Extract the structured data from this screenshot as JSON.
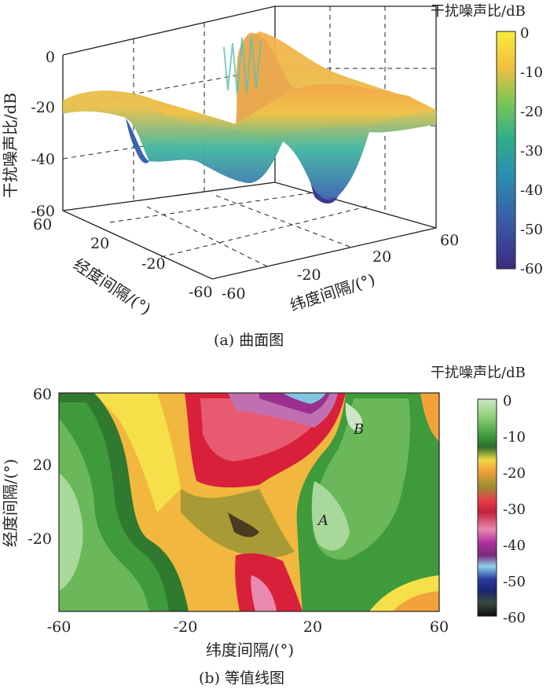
{
  "chart_data": [
    {
      "type": "surface",
      "caption": "(a) 曲面图",
      "zlabel": "干扰噪声比/dB",
      "xlabel": "纬度间隔/(°)",
      "ylabel": "经度间隔/(°)",
      "x_ticks": [
        "-60",
        "-20",
        "20",
        "60"
      ],
      "y_ticks": [
        "-60",
        "-20",
        "20",
        "60"
      ],
      "z_ticks": [
        "0",
        "-20",
        "-40",
        "-60"
      ],
      "zlim": [
        -60,
        0
      ],
      "colorbar": {
        "label": "干扰噪声比/dB",
        "ticks": [
          "0",
          "-10",
          "-20",
          "-30",
          "-40",
          "-50",
          "-60"
        ],
        "range": [
          -60,
          0
        ]
      },
      "colors": {
        "low": "#3b2f8f",
        "mid": "#22a784",
        "high": "#f7e43a",
        "peak": "#f9b545"
      }
    },
    {
      "type": "heatmap",
      "caption": "(b) 等值线图",
      "xlabel": "纬度间隔/(°)",
      "ylabel": "经度间隔/(°)",
      "x_ticks": [
        "-60",
        "-20",
        "20",
        "60"
      ],
      "y_ticks": [
        "60",
        "20",
        "-20"
      ],
      "annotations": [
        "A",
        "B"
      ],
      "colorbar": {
        "label": "干扰噪声比/dB",
        "ticks": [
          "0",
          "-10",
          "-20",
          "-30",
          "-40",
          "-50",
          "-60"
        ],
        "range": [
          -60,
          0
        ]
      }
    }
  ]
}
